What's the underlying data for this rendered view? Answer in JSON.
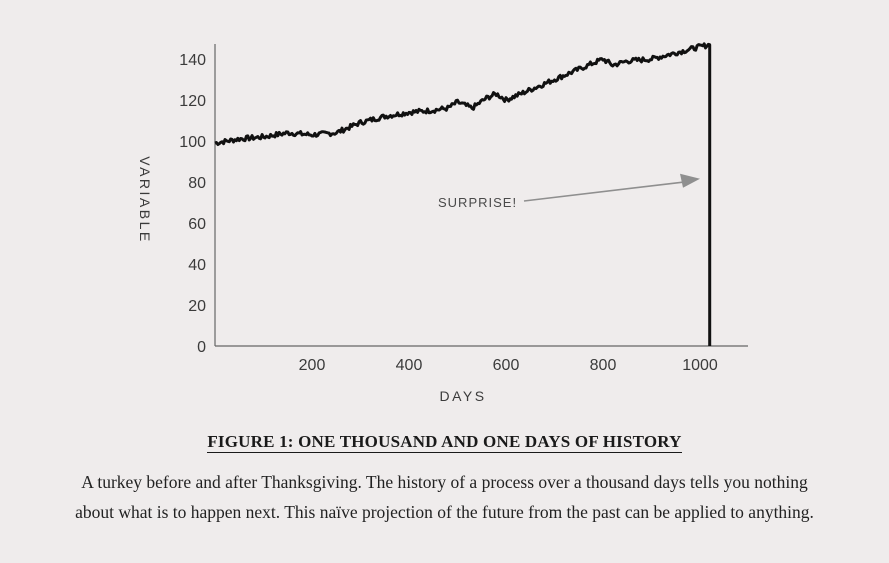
{
  "chart_data": {
    "type": "line",
    "xlabel": "DAYS",
    "ylabel": "VARIABLE",
    "xlim": [
      0,
      1100
    ],
    "ylim": [
      0,
      145
    ],
    "x_ticks": [
      200,
      400,
      600,
      800,
      1000
    ],
    "y_ticks": [
      0,
      20,
      40,
      60,
      80,
      100,
      120,
      140
    ],
    "grid": false,
    "series": [
      {
        "x": [
          0,
          50,
          100,
          150,
          200,
          250,
          300,
          350,
          400,
          450,
          480,
          500,
          530,
          560,
          580,
          600,
          620,
          650,
          700,
          750,
          780,
          800,
          820,
          850,
          900,
          950,
          1000,
          1020
        ],
        "y": [
          99,
          101,
          102,
          104,
          103,
          104,
          109,
          112,
          114,
          115,
          116,
          119,
          116,
          121,
          123,
          120,
          122,
          125,
          130,
          135,
          138,
          140,
          137,
          139,
          140,
          143,
          146,
          147
        ],
        "drop": {
          "x": 1020,
          "y": 0
        }
      }
    ],
    "annotations": [
      {
        "text": "SURPRISE!",
        "points_to": {
          "x": 1000,
          "y": 84
        }
      }
    ]
  },
  "figure": {
    "title": "FIGURE 1: ONE THOUSAND AND ONE DAYS OF HISTORY",
    "caption": "A turkey before and after Thanksgiving. The history of a process over a thousand days tells you nothing about what is to happen next. This naïve projection of the future from the past can be applied to anything."
  }
}
